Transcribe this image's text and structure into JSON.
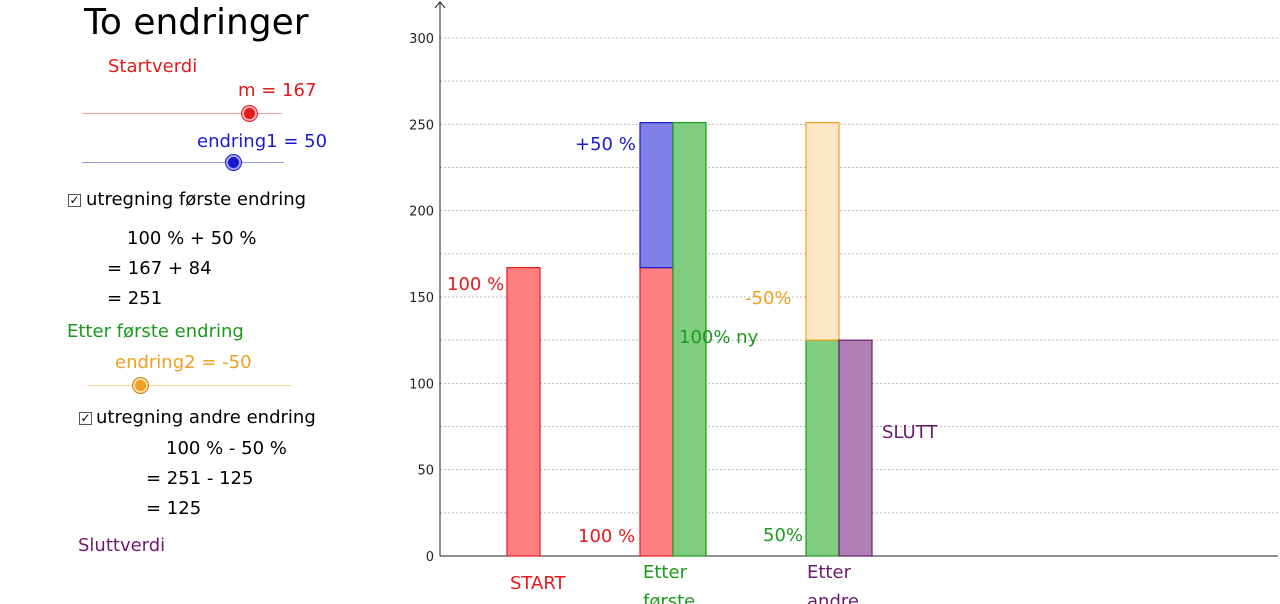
{
  "title": "To endringer",
  "colors": {
    "red": "#e41a1c",
    "blue": "#1a1acc",
    "green": "#1c9a1c",
    "orange": "#f0a020",
    "purple": "#6b1b6e"
  },
  "panel": {
    "start_label": "Startverdi",
    "slider_m": {
      "label": "m = 167",
      "value": 167
    },
    "slider_e1": {
      "label": "endring1 = 50",
      "value": 50
    },
    "checkbox1": {
      "label": "utregning første endring",
      "checked": true,
      "mark": "✓"
    },
    "calc1": [
      "100 % + 50 %",
      "= 167 +  84",
      "= 251"
    ],
    "after_first_label": "Etter første endring",
    "slider_e2": {
      "label": "endring2 = -50",
      "value": -50
    },
    "checkbox2": {
      "label": "utregning andre endring",
      "checked": true,
      "mark": "✓"
    },
    "calc2": [
      "100 % - 50 %",
      "= 251 - 125",
      "= 125"
    ],
    "end_label": "Sluttverdi"
  },
  "chart_data": {
    "type": "bar",
    "ylim": [
      0,
      300
    ],
    "yticks": [
      0,
      50,
      100,
      150,
      200,
      250,
      300
    ],
    "grid": true,
    "bars": [
      {
        "name": "start",
        "bottom": 0,
        "top": 167,
        "color": "red"
      },
      {
        "name": "first-base",
        "bottom": 0,
        "top": 167,
        "color": "red"
      },
      {
        "name": "first-change",
        "bottom": 167,
        "top": 251,
        "color": "blue"
      },
      {
        "name": "first-new",
        "bottom": 0,
        "top": 251,
        "color": "green"
      },
      {
        "name": "second-base",
        "bottom": 0,
        "top": 125,
        "color": "green"
      },
      {
        "name": "second-change",
        "bottom": 125,
        "top": 251,
        "color": "orange"
      },
      {
        "name": "end",
        "bottom": 0,
        "top": 125,
        "color": "purple"
      }
    ],
    "annotations": [
      {
        "text": "100 %",
        "color": "red",
        "at": "start-left"
      },
      {
        "text": "+50 %",
        "color": "blue",
        "at": "first-change-left"
      },
      {
        "text": "100 %",
        "color": "red",
        "at": "first-base-left"
      },
      {
        "text": "100% ny",
        "color": "green",
        "at": "first-new-right"
      },
      {
        "text": "-50%",
        "color": "orange",
        "at": "second-change-left"
      },
      {
        "text": "50%",
        "color": "green",
        "at": "second-base-left"
      },
      {
        "text": "SLUTT",
        "color": "purple",
        "at": "end-right"
      }
    ],
    "category_labels": [
      {
        "lines": [
          "START"
        ],
        "color": "red"
      },
      {
        "lines": [
          "Etter",
          "første"
        ],
        "color": "green"
      },
      {
        "lines": [
          "Etter",
          "andre"
        ],
        "color": "purple"
      }
    ]
  }
}
